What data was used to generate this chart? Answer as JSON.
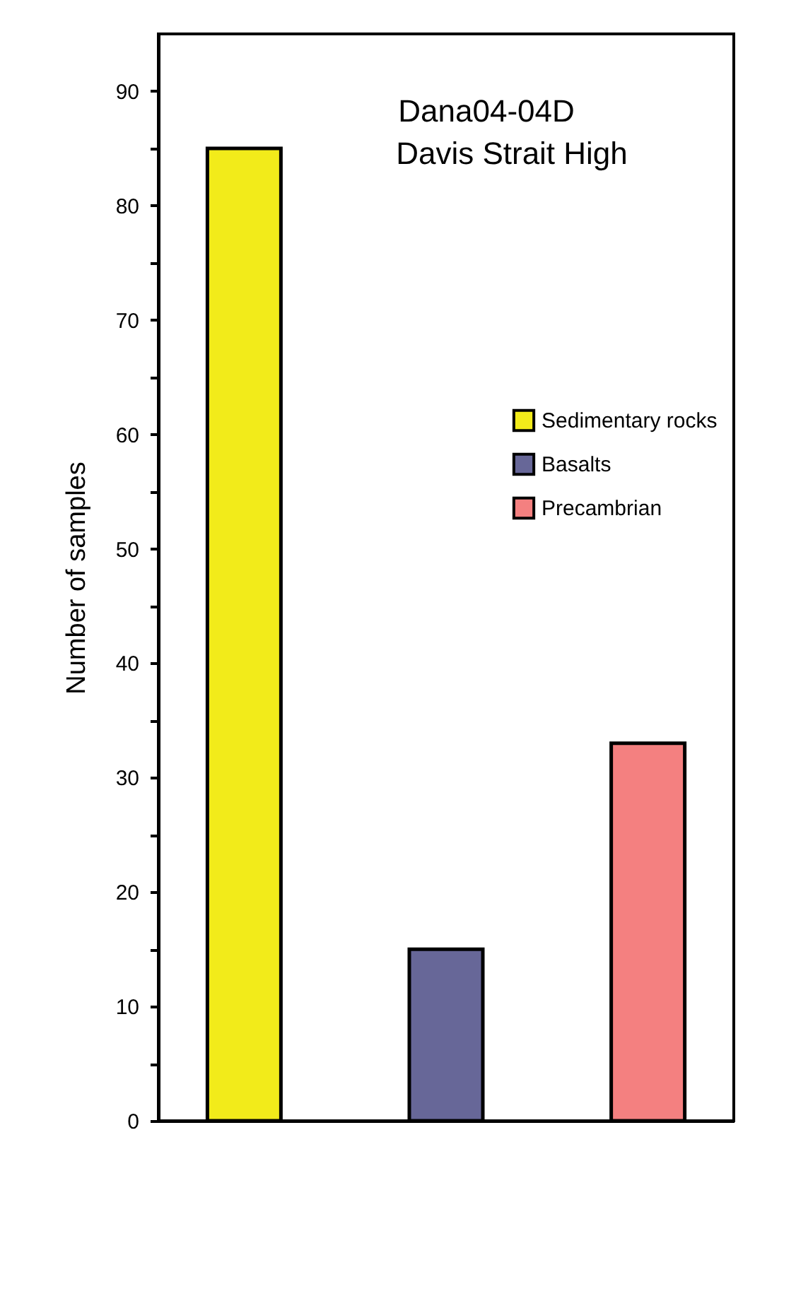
{
  "chart_data": {
    "type": "bar",
    "title": [
      "Dana04-04D",
      "Davis Strait High"
    ],
    "ylabel": "Number of samples",
    "categories": [
      null,
      null,
      null
    ],
    "series": [
      {
        "name": "Sedimentary rocks",
        "color": "#f2eb1a",
        "values": [
          85,
          null,
          null
        ]
      },
      {
        "name": "Basalts",
        "color": "#676798",
        "values": [
          null,
          15,
          null
        ]
      },
      {
        "name": "Precambrian",
        "color": "#f48080",
        "values": [
          null,
          null,
          33
        ]
      }
    ],
    "ylim": [
      0,
      95
    ],
    "yticks": [
      0,
      {
        "value": 5,
        "label": null
      },
      10,
      {
        "value": 15,
        "label": null
      },
      20,
      {
        "value": 25,
        "label": null
      },
      30,
      {
        "value": 35,
        "label": null
      },
      40,
      {
        "value": 45,
        "label": null
      },
      50,
      {
        "value": 55,
        "label": null
      },
      60,
      {
        "value": 65,
        "label": null
      },
      70,
      {
        "value": 75,
        "label": null
      },
      80,
      {
        "value": 85,
        "label": null
      },
      90
    ],
    "grid": false,
    "legend": "right"
  }
}
